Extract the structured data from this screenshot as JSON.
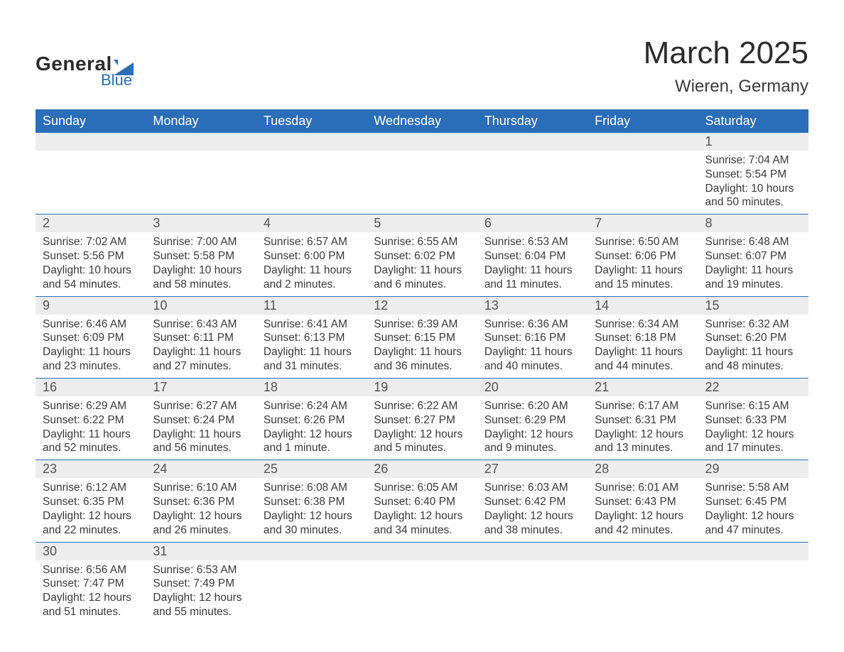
{
  "colors": {
    "header_bg": "#2a6db8",
    "header_text": "#ffffff",
    "row_separator": "#2a6db8",
    "daynum_bg": "#ededed",
    "daynum_text": "#555555",
    "body_text": "#3a3a3a",
    "background": "#ffffff",
    "logo_dark": "#2c2c2c",
    "logo_blue": "#2a6db8"
  },
  "typography": {
    "month_title_fontsize": 44,
    "location_fontsize": 24,
    "weekday_fontsize": 18,
    "daynum_fontsize": 18,
    "body_fontsize": 15.5,
    "font_family": "Arial"
  },
  "logo": {
    "main": "General",
    "sub": "Blue"
  },
  "title": "March 2025",
  "location": "Wieren, Germany",
  "weekdays": [
    "Sunday",
    "Monday",
    "Tuesday",
    "Wednesday",
    "Thursday",
    "Friday",
    "Saturday"
  ],
  "weeks": [
    [
      null,
      null,
      null,
      null,
      null,
      null,
      {
        "n": "1",
        "sunrise": "Sunrise: 7:04 AM",
        "sunset": "Sunset: 5:54 PM",
        "day1": "Daylight: 10 hours",
        "day2": "and 50 minutes."
      }
    ],
    [
      {
        "n": "2",
        "sunrise": "Sunrise: 7:02 AM",
        "sunset": "Sunset: 5:56 PM",
        "day1": "Daylight: 10 hours",
        "day2": "and 54 minutes."
      },
      {
        "n": "3",
        "sunrise": "Sunrise: 7:00 AM",
        "sunset": "Sunset: 5:58 PM",
        "day1": "Daylight: 10 hours",
        "day2": "and 58 minutes."
      },
      {
        "n": "4",
        "sunrise": "Sunrise: 6:57 AM",
        "sunset": "Sunset: 6:00 PM",
        "day1": "Daylight: 11 hours",
        "day2": "and 2 minutes."
      },
      {
        "n": "5",
        "sunrise": "Sunrise: 6:55 AM",
        "sunset": "Sunset: 6:02 PM",
        "day1": "Daylight: 11 hours",
        "day2": "and 6 minutes."
      },
      {
        "n": "6",
        "sunrise": "Sunrise: 6:53 AM",
        "sunset": "Sunset: 6:04 PM",
        "day1": "Daylight: 11 hours",
        "day2": "and 11 minutes."
      },
      {
        "n": "7",
        "sunrise": "Sunrise: 6:50 AM",
        "sunset": "Sunset: 6:06 PM",
        "day1": "Daylight: 11 hours",
        "day2": "and 15 minutes."
      },
      {
        "n": "8",
        "sunrise": "Sunrise: 6:48 AM",
        "sunset": "Sunset: 6:07 PM",
        "day1": "Daylight: 11 hours",
        "day2": "and 19 minutes."
      }
    ],
    [
      {
        "n": "9",
        "sunrise": "Sunrise: 6:46 AM",
        "sunset": "Sunset: 6:09 PM",
        "day1": "Daylight: 11 hours",
        "day2": "and 23 minutes."
      },
      {
        "n": "10",
        "sunrise": "Sunrise: 6:43 AM",
        "sunset": "Sunset: 6:11 PM",
        "day1": "Daylight: 11 hours",
        "day2": "and 27 minutes."
      },
      {
        "n": "11",
        "sunrise": "Sunrise: 6:41 AM",
        "sunset": "Sunset: 6:13 PM",
        "day1": "Daylight: 11 hours",
        "day2": "and 31 minutes."
      },
      {
        "n": "12",
        "sunrise": "Sunrise: 6:39 AM",
        "sunset": "Sunset: 6:15 PM",
        "day1": "Daylight: 11 hours",
        "day2": "and 36 minutes."
      },
      {
        "n": "13",
        "sunrise": "Sunrise: 6:36 AM",
        "sunset": "Sunset: 6:16 PM",
        "day1": "Daylight: 11 hours",
        "day2": "and 40 minutes."
      },
      {
        "n": "14",
        "sunrise": "Sunrise: 6:34 AM",
        "sunset": "Sunset: 6:18 PM",
        "day1": "Daylight: 11 hours",
        "day2": "and 44 minutes."
      },
      {
        "n": "15",
        "sunrise": "Sunrise: 6:32 AM",
        "sunset": "Sunset: 6:20 PM",
        "day1": "Daylight: 11 hours",
        "day2": "and 48 minutes."
      }
    ],
    [
      {
        "n": "16",
        "sunrise": "Sunrise: 6:29 AM",
        "sunset": "Sunset: 6:22 PM",
        "day1": "Daylight: 11 hours",
        "day2": "and 52 minutes."
      },
      {
        "n": "17",
        "sunrise": "Sunrise: 6:27 AM",
        "sunset": "Sunset: 6:24 PM",
        "day1": "Daylight: 11 hours",
        "day2": "and 56 minutes."
      },
      {
        "n": "18",
        "sunrise": "Sunrise: 6:24 AM",
        "sunset": "Sunset: 6:26 PM",
        "day1": "Daylight: 12 hours",
        "day2": "and 1 minute."
      },
      {
        "n": "19",
        "sunrise": "Sunrise: 6:22 AM",
        "sunset": "Sunset: 6:27 PM",
        "day1": "Daylight: 12 hours",
        "day2": "and 5 minutes."
      },
      {
        "n": "20",
        "sunrise": "Sunrise: 6:20 AM",
        "sunset": "Sunset: 6:29 PM",
        "day1": "Daylight: 12 hours",
        "day2": "and 9 minutes."
      },
      {
        "n": "21",
        "sunrise": "Sunrise: 6:17 AM",
        "sunset": "Sunset: 6:31 PM",
        "day1": "Daylight: 12 hours",
        "day2": "and 13 minutes."
      },
      {
        "n": "22",
        "sunrise": "Sunrise: 6:15 AM",
        "sunset": "Sunset: 6:33 PM",
        "day1": "Daylight: 12 hours",
        "day2": "and 17 minutes."
      }
    ],
    [
      {
        "n": "23",
        "sunrise": "Sunrise: 6:12 AM",
        "sunset": "Sunset: 6:35 PM",
        "day1": "Daylight: 12 hours",
        "day2": "and 22 minutes."
      },
      {
        "n": "24",
        "sunrise": "Sunrise: 6:10 AM",
        "sunset": "Sunset: 6:36 PM",
        "day1": "Daylight: 12 hours",
        "day2": "and 26 minutes."
      },
      {
        "n": "25",
        "sunrise": "Sunrise: 6:08 AM",
        "sunset": "Sunset: 6:38 PM",
        "day1": "Daylight: 12 hours",
        "day2": "and 30 minutes."
      },
      {
        "n": "26",
        "sunrise": "Sunrise: 6:05 AM",
        "sunset": "Sunset: 6:40 PM",
        "day1": "Daylight: 12 hours",
        "day2": "and 34 minutes."
      },
      {
        "n": "27",
        "sunrise": "Sunrise: 6:03 AM",
        "sunset": "Sunset: 6:42 PM",
        "day1": "Daylight: 12 hours",
        "day2": "and 38 minutes."
      },
      {
        "n": "28",
        "sunrise": "Sunrise: 6:01 AM",
        "sunset": "Sunset: 6:43 PM",
        "day1": "Daylight: 12 hours",
        "day2": "and 42 minutes."
      },
      {
        "n": "29",
        "sunrise": "Sunrise: 5:58 AM",
        "sunset": "Sunset: 6:45 PM",
        "day1": "Daylight: 12 hours",
        "day2": "and 47 minutes."
      }
    ],
    [
      {
        "n": "30",
        "sunrise": "Sunrise: 6:56 AM",
        "sunset": "Sunset: 7:47 PM",
        "day1": "Daylight: 12 hours",
        "day2": "and 51 minutes."
      },
      {
        "n": "31",
        "sunrise": "Sunrise: 6:53 AM",
        "sunset": "Sunset: 7:49 PM",
        "day1": "Daylight: 12 hours",
        "day2": "and 55 minutes."
      },
      null,
      null,
      null,
      null,
      null
    ]
  ]
}
